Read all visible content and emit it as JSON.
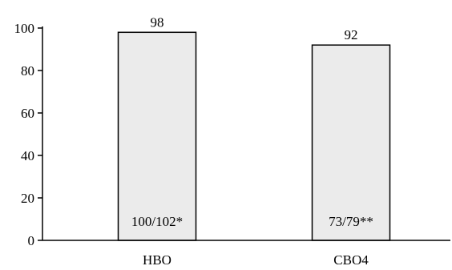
{
  "chart_data": {
    "type": "bar",
    "categories": [
      "HBO",
      "CBO4"
    ],
    "values": [
      98,
      92
    ],
    "value_labels": [
      "98",
      "92"
    ],
    "inner_labels": [
      "100/102*",
      "73/79**"
    ],
    "yticks": [
      0,
      20,
      40,
      60,
      80,
      100
    ],
    "ylim": [
      0,
      100
    ],
    "grid": false,
    "legend": "none",
    "colors": {
      "bar_fill": "#ebebeb",
      "bar_stroke": "#000000",
      "axis": "#000000",
      "text": "#000000"
    }
  }
}
